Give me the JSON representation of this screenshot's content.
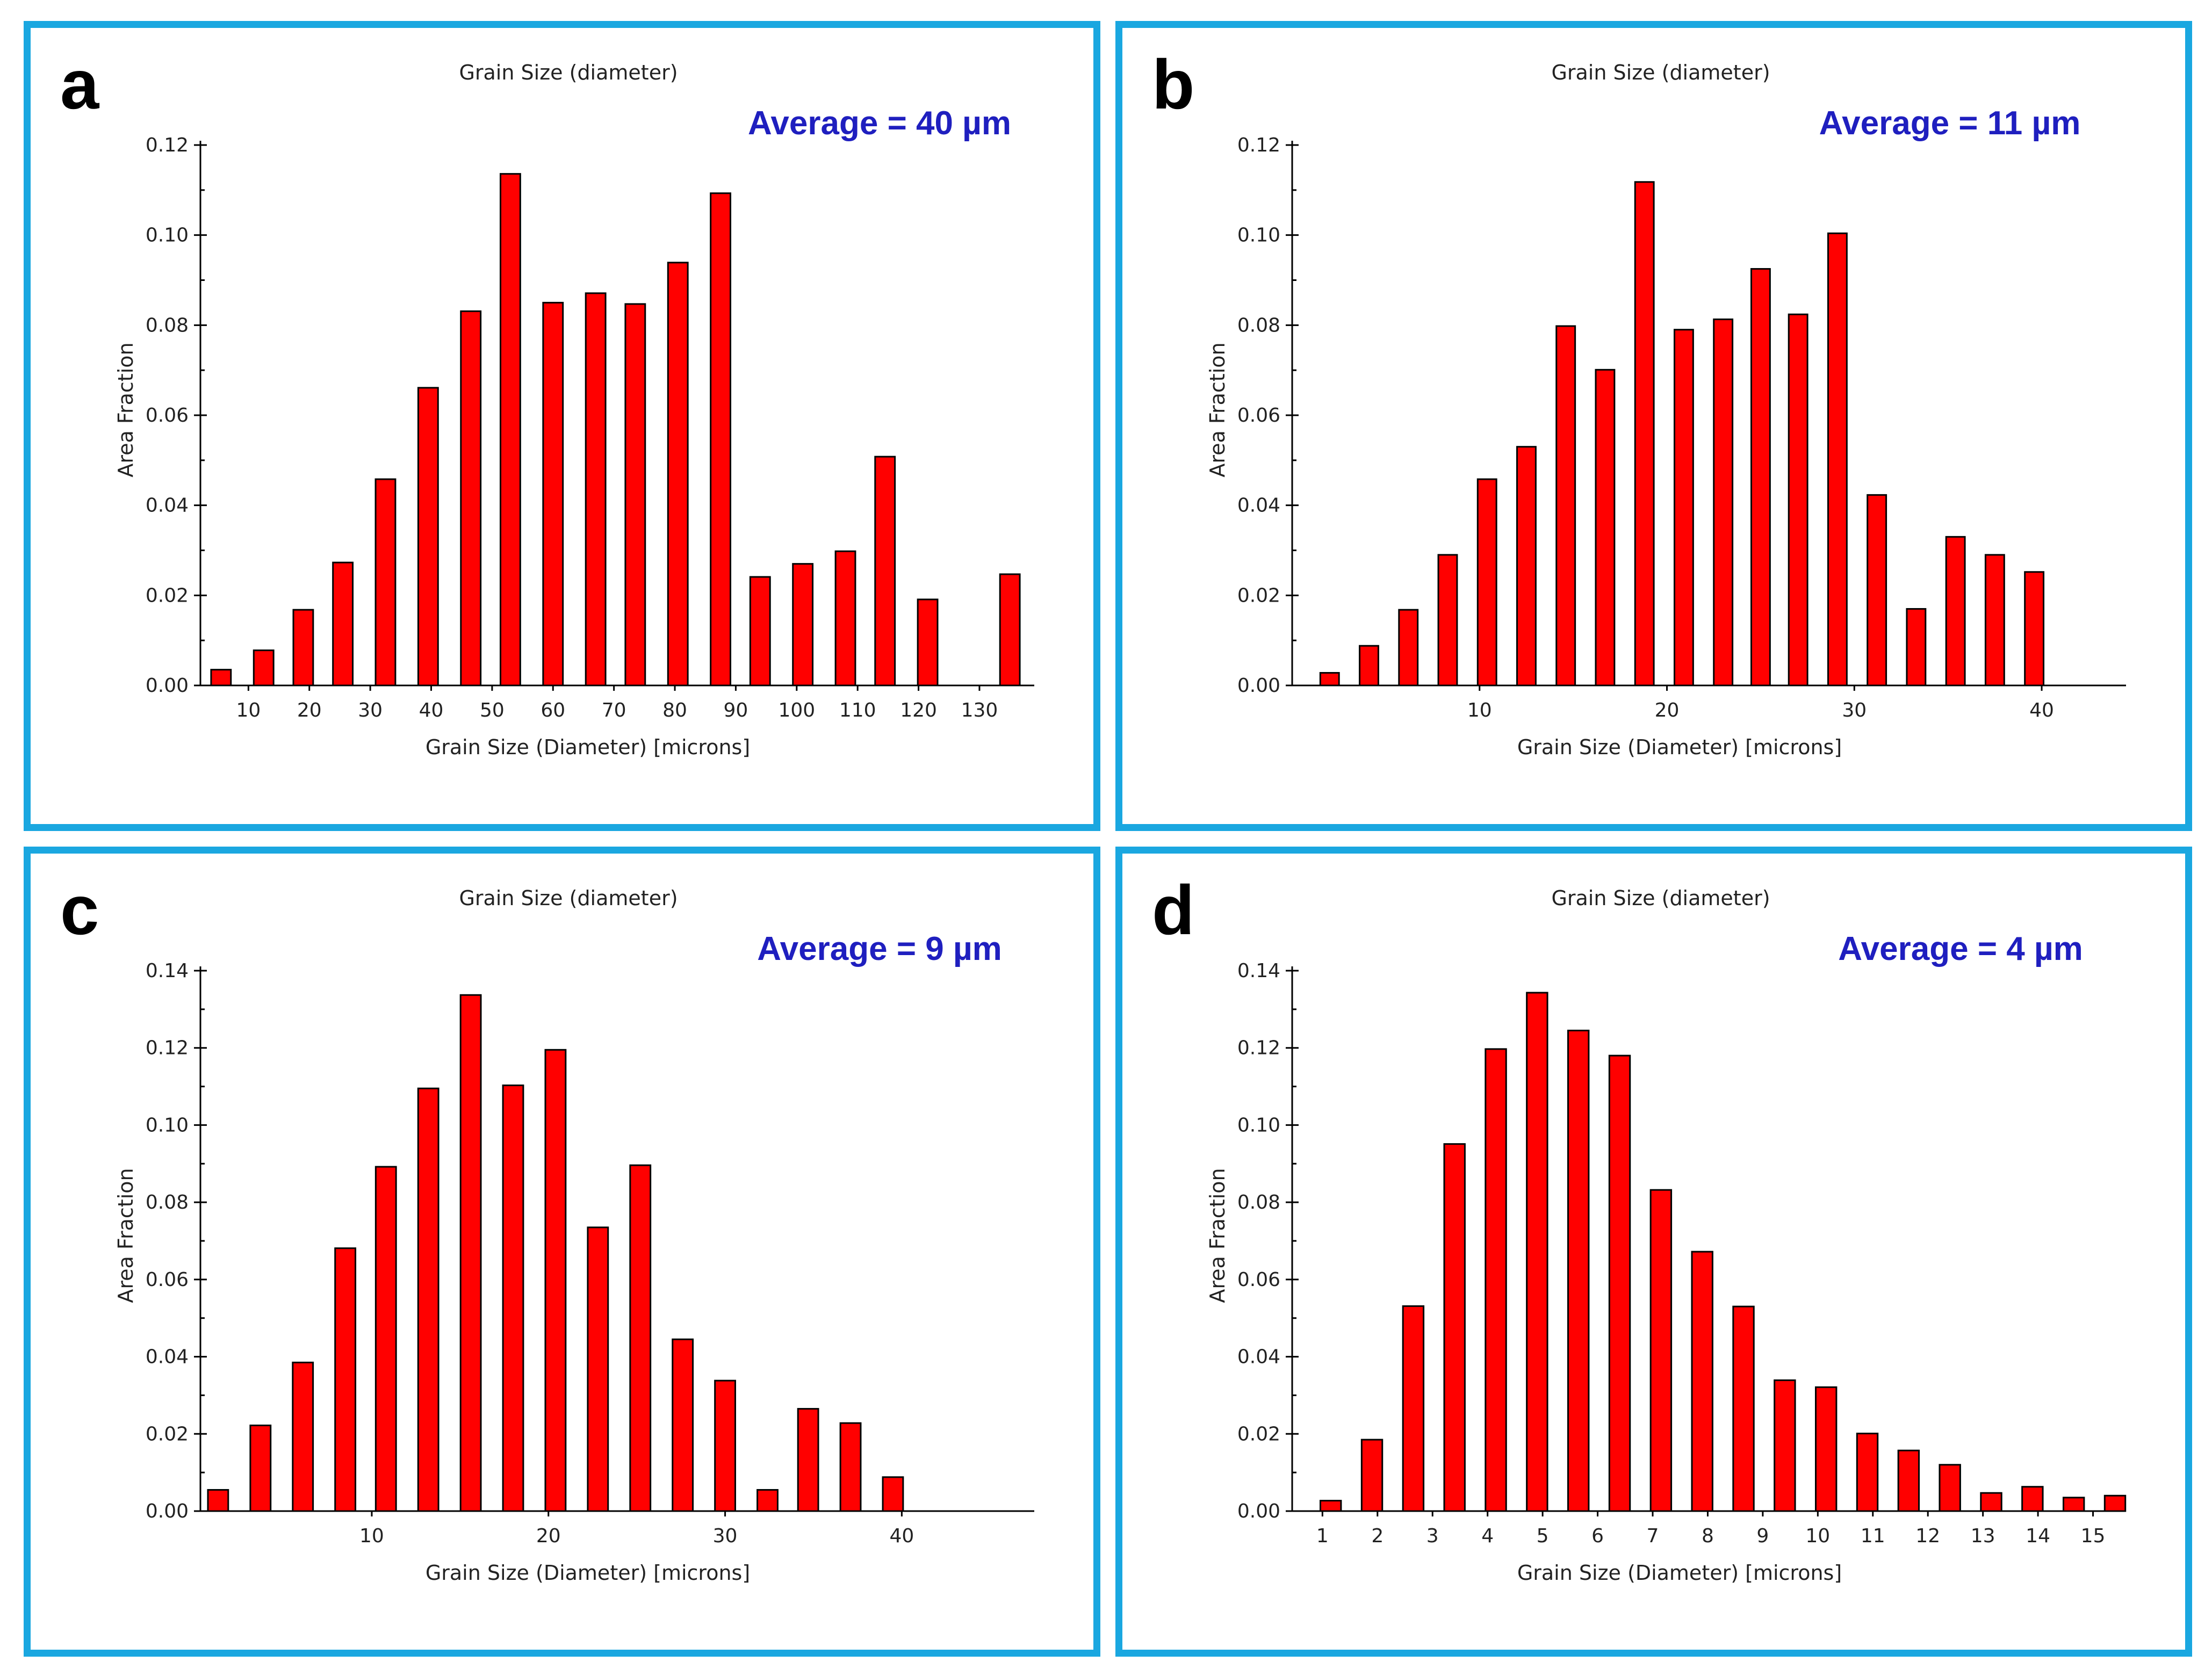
{
  "colors": {
    "panel_border": "#1aa7e0",
    "bar": "#ff0000",
    "average_text": "#1f1fbf"
  },
  "chart_data": [
    {
      "type": "bar",
      "panel_label": "a",
      "title": "Grain Size (diameter)",
      "annotation": "Average = 40 µm",
      "xlabel": "Grain Size (Diameter) [microns]",
      "ylabel": "Area Fraction",
      "xlim": [
        3.0,
        139.0
      ],
      "ylim": [
        0,
        0.12
      ],
      "yticks": [
        "0.00",
        "0.02",
        "0.04",
        "0.06",
        "0.08",
        "0.10",
        "0.12"
      ],
      "xticks": [
        10,
        20,
        30,
        40,
        50,
        60,
        70,
        80,
        90,
        100,
        110,
        120,
        130
      ],
      "x": [
        5.5,
        12.5,
        19.0,
        25.5,
        32.5,
        39.5,
        46.5,
        53.0,
        60.0,
        67.0,
        73.5,
        80.5,
        87.5,
        94.0,
        101.0,
        108.0,
        114.5,
        121.5,
        135.0
      ],
      "values": [
        0.0035,
        0.0078,
        0.0168,
        0.0273,
        0.0458,
        0.0661,
        0.0831,
        0.1136,
        0.085,
        0.0871,
        0.0847,
        0.0939,
        0.1093,
        0.0241,
        0.027,
        0.0298,
        0.0508,
        0.0191,
        0.0247
      ]
    },
    {
      "type": "bar",
      "panel_label": "b",
      "title": "Grain Size (diameter)",
      "annotation": "Average =  11 µm",
      "xlabel": "Grain Size (Diameter) [microns]",
      "ylabel": "Area Fraction",
      "xlim": [
        0.0,
        44.5
      ],
      "ylim": [
        0,
        0.12
      ],
      "yticks": [
        "0.00",
        "0.02",
        "0.04",
        "0.06",
        "0.08",
        "0.10",
        "0.12"
      ],
      "xticks": [
        10,
        20,
        30,
        40
      ],
      "x": [
        2.0,
        4.1,
        6.2,
        8.3,
        10.4,
        12.5,
        14.6,
        16.7,
        18.8,
        20.9,
        23.0,
        25.0,
        27.0,
        29.1,
        31.2,
        33.3,
        35.4,
        37.5,
        39.6
      ],
      "values": [
        0.0028,
        0.0088,
        0.0168,
        0.029,
        0.0458,
        0.053,
        0.0798,
        0.0701,
        0.1118,
        0.079,
        0.0813,
        0.0925,
        0.0824,
        0.1004,
        0.0423,
        0.017,
        0.033,
        0.029,
        0.0252
      ]
    },
    {
      "type": "bar",
      "panel_label": "c",
      "title": "Grain Size (diameter)",
      "annotation": "Average = 9  µm",
      "xlabel": "Grain Size (Diameter) [microns]",
      "ylabel": "Area Fraction",
      "xlim": [
        0.3,
        47.5
      ],
      "ylim": [
        0,
        0.14
      ],
      "yticks": [
        "0.00",
        "0.02",
        "0.04",
        "0.06",
        "0.08",
        "0.10",
        "0.12",
        "0.14"
      ],
      "xticks": [
        10,
        20,
        30,
        40
      ],
      "x": [
        1.3,
        3.7,
        6.1,
        8.5,
        10.8,
        13.2,
        15.6,
        18.0,
        20.4,
        22.8,
        25.2,
        27.6,
        30.0,
        32.4,
        34.7,
        37.1,
        39.5
      ],
      "values": [
        0.0055,
        0.0222,
        0.0385,
        0.0681,
        0.0892,
        0.1095,
        0.1337,
        0.1103,
        0.1195,
        0.0735,
        0.0896,
        0.0445,
        0.0338,
        0.0055,
        0.0265,
        0.0228,
        0.0088
      ]
    },
    {
      "type": "bar",
      "panel_label": "d",
      "title": "Grain Size (diameter)",
      "annotation": "Average = 4  µm",
      "xlabel": "Grain Size (Diameter) [microns]",
      "ylabel": "Area Fraction",
      "xlim": [
        0.45,
        15.6
      ],
      "ylim": [
        0,
        0.14
      ],
      "yticks": [
        "0.00",
        "0.02",
        "0.04",
        "0.06",
        "0.08",
        "0.10",
        "0.12",
        "0.14"
      ],
      "xticks": [
        1,
        2,
        3,
        4,
        5,
        6,
        7,
        8,
        9,
        10,
        11,
        12,
        13,
        14,
        15
      ],
      "x": [
        1.15,
        1.9,
        2.65,
        3.4,
        4.15,
        4.9,
        5.65,
        6.4,
        7.15,
        7.9,
        8.65,
        9.4,
        10.15,
        10.9,
        11.65,
        12.4,
        13.15,
        13.9,
        14.65,
        15.4
      ],
      "values": [
        0.0027,
        0.0185,
        0.0531,
        0.0951,
        0.1197,
        0.1343,
        0.1245,
        0.118,
        0.0832,
        0.0672,
        0.053,
        0.0339,
        0.0321,
        0.0201,
        0.0157,
        0.012,
        0.0047,
        0.0063,
        0.0035,
        0.004
      ]
    }
  ]
}
